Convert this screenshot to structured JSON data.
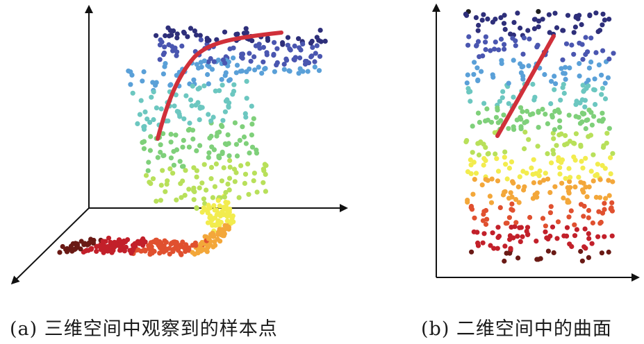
{
  "captions": {
    "a": "(a) 三维空间中观察到的样本点",
    "b": "(b) 二维空间中的曲面"
  },
  "colors": {
    "axis": "#111111",
    "curve": "#d0303a",
    "ramp": [
      "#1f1f1f",
      "#2e2f7a",
      "#4a56b0",
      "#5aa0d8",
      "#6cc7c0",
      "#7fd07a",
      "#b8e05a",
      "#f2ec4e",
      "#f3a73a",
      "#e0502f",
      "#c2202a",
      "#6a1a15"
    ]
  }
}
